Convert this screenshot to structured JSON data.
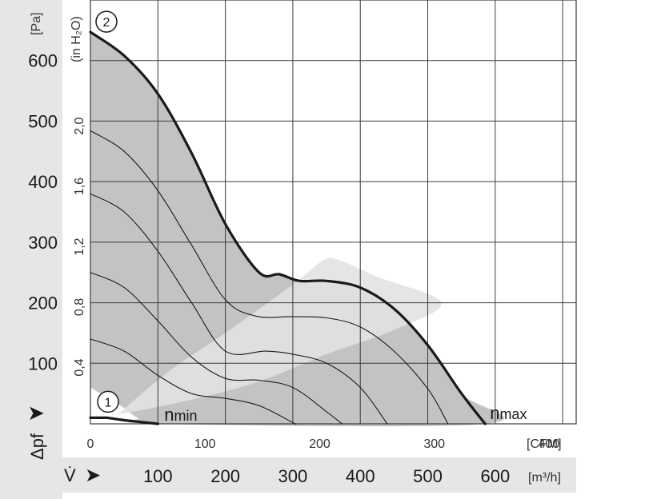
{
  "chart_data": {
    "type": "line",
    "x_units": {
      "primary": "[m³/h]",
      "secondary": "[CFM]"
    },
    "y_units": {
      "primary": "[Pa]",
      "secondary": "(in H₂O)"
    },
    "y_axis_symbol": "Δpf",
    "x_axis_symbol": "V̇",
    "xlim_m3h": [
      0,
      720
    ],
    "ylim_pa": [
      0,
      700
    ],
    "x_ticks_m3h": [
      "100",
      "200",
      "300",
      "400",
      "500",
      "600"
    ],
    "x_ticks_cfm": [
      {
        "value": 0,
        "label": "0"
      },
      {
        "value": 100,
        "label": "100"
      },
      {
        "value": 200,
        "label": "200"
      },
      {
        "value": 300,
        "label": "300"
      },
      {
        "value": 400,
        "label": "400"
      }
    ],
    "y_ticks_pa": [
      "100",
      "200",
      "300",
      "400",
      "500",
      "600"
    ],
    "y_ticks_inh2o": [
      {
        "value": 0.4,
        "label": "0,4"
      },
      {
        "value": 0.8,
        "label": "0,8"
      },
      {
        "value": 1.2,
        "label": "1,2"
      },
      {
        "value": 1.6,
        "label": "1,6"
      },
      {
        "value": 2.0,
        "label": "2,0"
      }
    ],
    "grid": true,
    "series": [
      {
        "name": "nmax",
        "marker": "2",
        "stroke": "thick",
        "points": [
          [
            0,
            647
          ],
          [
            50,
            608
          ],
          [
            100,
            545
          ],
          [
            150,
            447
          ],
          [
            200,
            330
          ],
          [
            250,
            250
          ],
          [
            280,
            247
          ],
          [
            310,
            236
          ],
          [
            350,
            236
          ],
          [
            400,
            225
          ],
          [
            450,
            190
          ],
          [
            500,
            130
          ],
          [
            550,
            50
          ],
          [
            585,
            0
          ]
        ]
      },
      {
        "name": "nmin",
        "marker": "1",
        "stroke": "thick",
        "points": [
          [
            0,
            10
          ],
          [
            25,
            10
          ],
          [
            50,
            6
          ],
          [
            75,
            3
          ],
          [
            100,
            0
          ]
        ]
      },
      {
        "stroke": "thin",
        "points": [
          [
            0,
            484
          ],
          [
            50,
            450
          ],
          [
            100,
            385
          ],
          [
            150,
            295
          ],
          [
            200,
            205
          ],
          [
            245,
            178
          ],
          [
            300,
            177
          ],
          [
            350,
            175
          ],
          [
            400,
            160
          ],
          [
            450,
            120
          ],
          [
            500,
            58
          ],
          [
            530,
            0
          ]
        ]
      },
      {
        "stroke": "thin",
        "points": [
          [
            0,
            380
          ],
          [
            50,
            350
          ],
          [
            100,
            285
          ],
          [
            150,
            200
          ],
          [
            200,
            120
          ],
          [
            260,
            120
          ],
          [
            300,
            115
          ],
          [
            350,
            100
          ],
          [
            400,
            60
          ],
          [
            440,
            0
          ]
        ]
      },
      {
        "stroke": "thin",
        "points": [
          [
            0,
            250
          ],
          [
            50,
            225
          ],
          [
            100,
            170
          ],
          [
            150,
            110
          ],
          [
            200,
            75
          ],
          [
            250,
            72
          ],
          [
            300,
            60
          ],
          [
            350,
            20
          ],
          [
            373,
            0
          ]
        ]
      },
      {
        "stroke": "thin",
        "points": [
          [
            0,
            140
          ],
          [
            50,
            120
          ],
          [
            100,
            80
          ],
          [
            150,
            50
          ],
          [
            200,
            42
          ],
          [
            250,
            30
          ],
          [
            300,
            2
          ],
          [
            303,
            0
          ]
        ]
      }
    ],
    "operating_region": [
      [
        0,
        647
      ],
      [
        50,
        608
      ],
      [
        100,
        545
      ],
      [
        150,
        447
      ],
      [
        200,
        330
      ],
      [
        250,
        250
      ],
      [
        280,
        247
      ],
      [
        310,
        236
      ],
      [
        350,
        236
      ],
      [
        400,
        225
      ],
      [
        450,
        190
      ],
      [
        500,
        130
      ],
      [
        550,
        50
      ],
      [
        585,
        0
      ],
      [
        100,
        0
      ],
      [
        70,
        10
      ],
      [
        45,
        30
      ],
      [
        0,
        60
      ]
    ],
    "recommended_band": [
      [
        40,
        15
      ],
      [
        150,
        40
      ],
      [
        250,
        70
      ],
      [
        350,
        115
      ],
      [
        450,
        155
      ],
      [
        520,
        200
      ],
      [
        425,
        243
      ],
      [
        370,
        270
      ],
      [
        345,
        270
      ],
      [
        300,
        230
      ],
      [
        200,
        150
      ],
      [
        120,
        90
      ],
      [
        40,
        15
      ]
    ],
    "colors": {
      "background": "#ffffff",
      "axis_panel": "#e6e6e6",
      "region": "#c3c3c3",
      "band": "#e2e2e2",
      "grid": "#3a3a3a",
      "curve": "#1a1a1a"
    }
  }
}
